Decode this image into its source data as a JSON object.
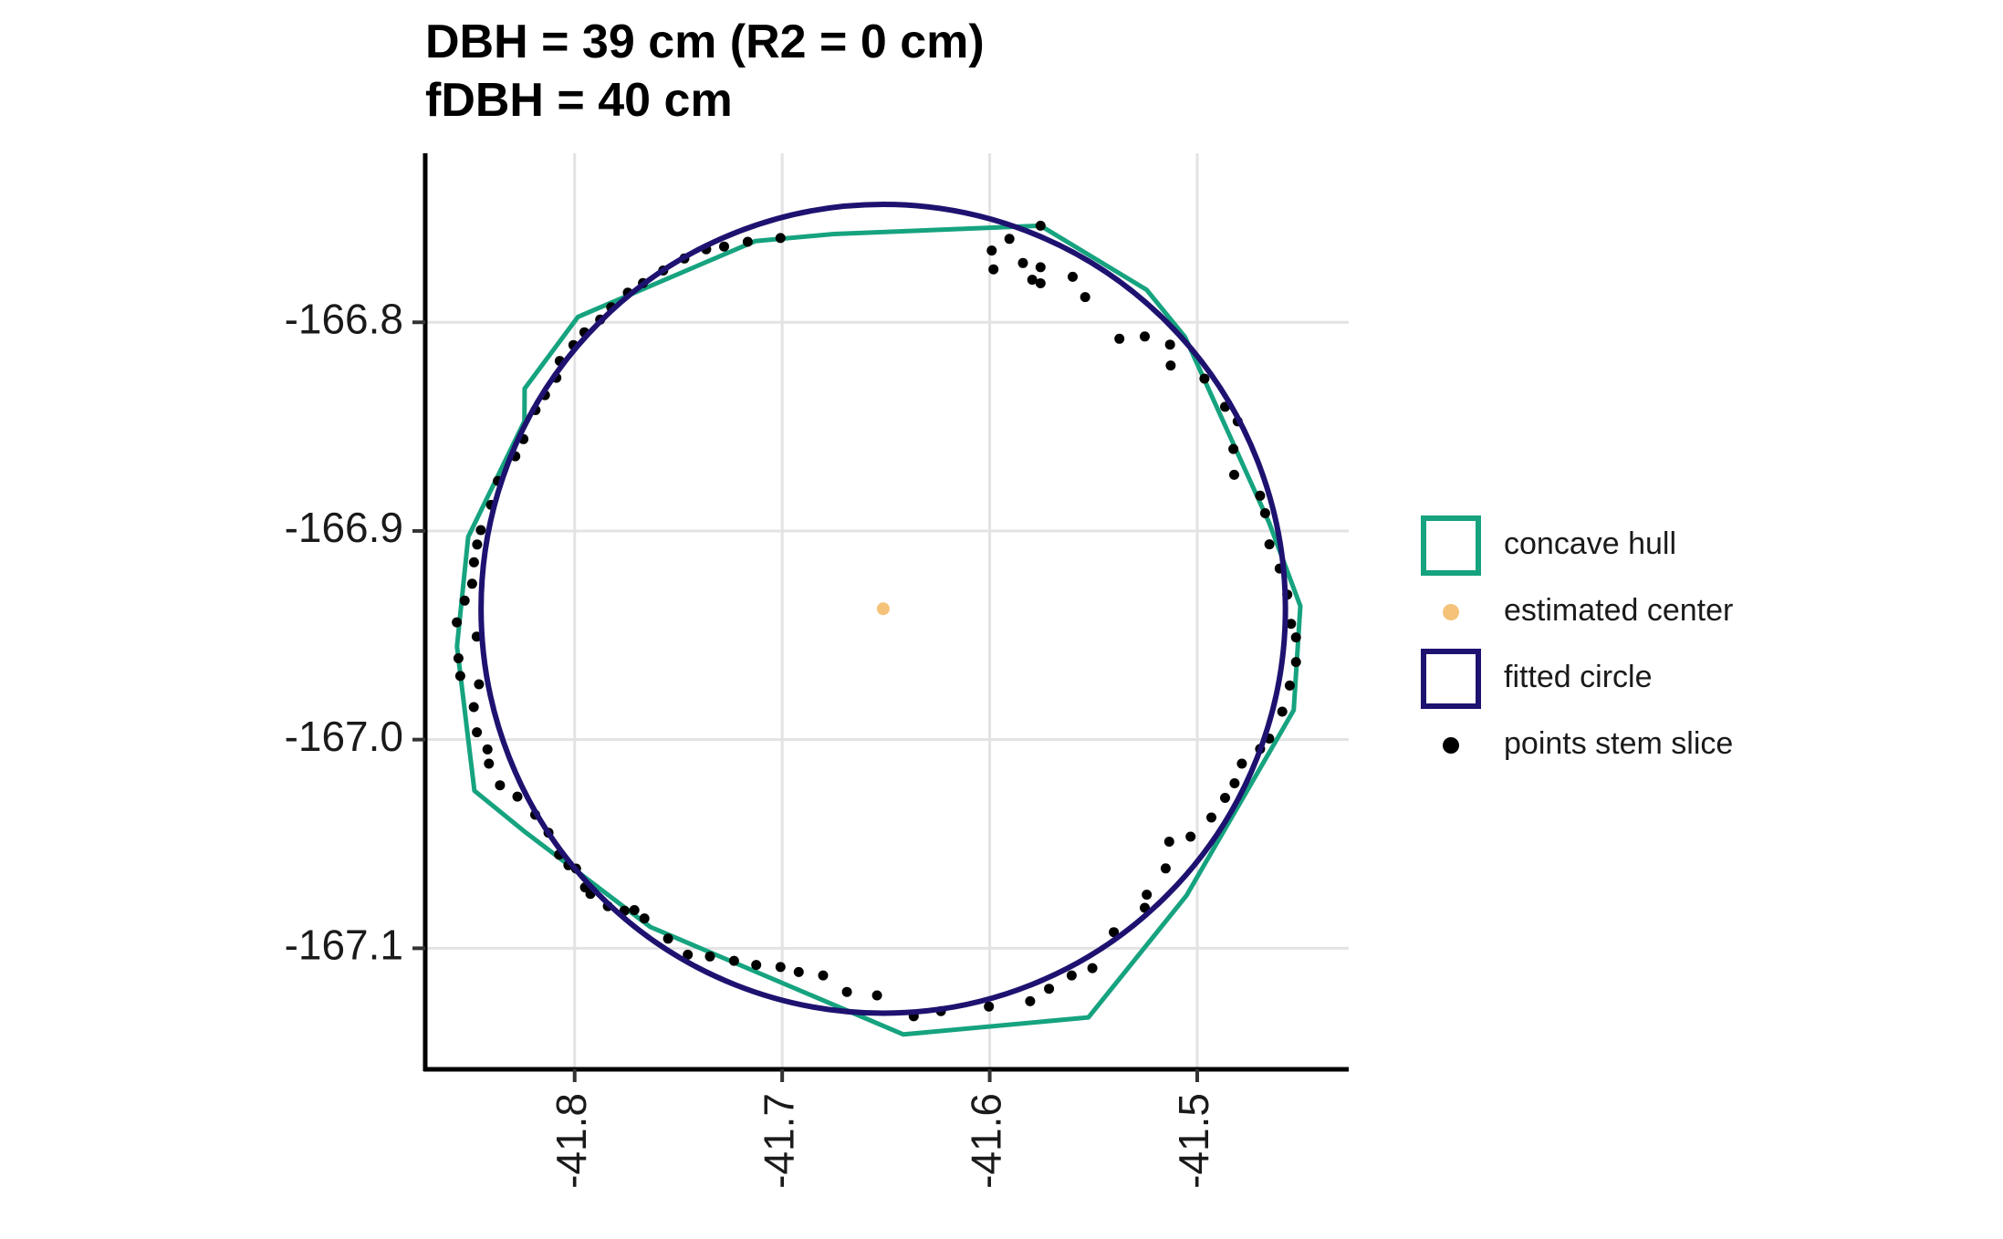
{
  "chart_data": {
    "type": "scatter",
    "title_lines": [
      "DBH = 39 cm (R2 = 0 cm)",
      "fDBH = 40 cm"
    ],
    "xlabel": "",
    "ylabel": "",
    "xlim": [
      -41.872,
      -41.427
    ],
    "ylim": [
      -167.158,
      -166.719
    ],
    "x_ticks": [
      -41.8,
      -41.7,
      -41.6,
      -41.5
    ],
    "x_tick_labels": [
      "-41.8",
      "-41.7",
      "-41.6",
      "-41.5"
    ],
    "y_ticks": [
      -166.8,
      -166.9,
      -167.0,
      -167.1
    ],
    "y_tick_labels": [
      "-166.8",
      "-166.9",
      "-167.0",
      "-167.1"
    ],
    "grid": true,
    "legend_position": "right",
    "colors": {
      "hull": "#16A37F",
      "circle": "#1E1270",
      "center": "#F5C27A",
      "points": "#000000",
      "grid": "#E3E3E3"
    },
    "legend": [
      {
        "key": "hull",
        "label": "concave hull",
        "glyph": "square-outline"
      },
      {
        "key": "center",
        "label": "estimated center",
        "glyph": "dot"
      },
      {
        "key": "circle",
        "label": "fitted circle",
        "glyph": "square-outline"
      },
      {
        "key": "points",
        "label": "points stem slice",
        "glyph": "dot"
      }
    ],
    "fitted_circle": {
      "cx": -41.6513,
      "cy": -166.9373,
      "r": 0.1938
    },
    "estimated_center": {
      "x": -41.6513,
      "y": -166.9373
    },
    "concave_hull": [
      [
        -41.6751,
        -166.7577
      ],
      [
        -41.713,
        -166.7611
      ],
      [
        -41.7984,
        -166.7974
      ],
      [
        -41.8241,
        -166.8318
      ],
      [
        -41.8242,
        -166.8474
      ],
      [
        -41.8513,
        -166.9028
      ],
      [
        -41.8567,
        -166.9553
      ],
      [
        -41.8483,
        -167.0245
      ],
      [
        -41.8236,
        -167.0445
      ],
      [
        -41.7635,
        -167.0898
      ],
      [
        -41.6416,
        -167.1413
      ],
      [
        -41.5524,
        -167.1331
      ],
      [
        -41.5051,
        -167.0746
      ],
      [
        -41.4535,
        -166.9859
      ],
      [
        -41.4503,
        -166.936
      ],
      [
        -41.4652,
        -166.8964
      ],
      [
        -41.5059,
        -166.807
      ],
      [
        -41.5244,
        -166.7844
      ],
      [
        -41.5755,
        -166.7537
      ]
    ],
    "points": [
      [
        -41.5755,
        -166.7537
      ],
      [
        -41.5905,
        -166.76
      ],
      [
        -41.599,
        -166.7656
      ],
      [
        -41.584,
        -166.7716
      ],
      [
        -41.5982,
        -166.7746
      ],
      [
        -41.5755,
        -166.7736
      ],
      [
        -41.5795,
        -166.7796
      ],
      [
        -41.5755,
        -166.7813
      ],
      [
        -41.56,
        -166.7782
      ],
      [
        -41.554,
        -166.7879
      ],
      [
        -41.5375,
        -166.8079
      ],
      [
        -41.5253,
        -166.8068
      ],
      [
        -41.5131,
        -166.8107
      ],
      [
        -41.5128,
        -166.8207
      ],
      [
        -41.4965,
        -166.827
      ],
      [
        -41.4866,
        -166.8405
      ],
      [
        -41.4805,
        -166.8475
      ],
      [
        -41.4826,
        -166.8607
      ],
      [
        -41.4822,
        -166.8731
      ],
      [
        -41.4697,
        -166.8831
      ],
      [
        -41.4673,
        -166.8915
      ],
      [
        -41.4652,
        -166.9064
      ],
      [
        -41.4603,
        -166.918
      ],
      [
        -41.4566,
        -166.9305
      ],
      [
        -41.4548,
        -166.9445
      ],
      [
        -41.4524,
        -166.951
      ],
      [
        -41.4524,
        -166.9628
      ],
      [
        -41.4554,
        -166.9741
      ],
      [
        -41.459,
        -166.9866
      ],
      [
        -41.4653,
        -166.9995
      ],
      [
        -41.4697,
        -167.0045
      ],
      [
        -41.4785,
        -167.0115
      ],
      [
        -41.482,
        -167.0209
      ],
      [
        -41.4866,
        -167.0279
      ],
      [
        -41.4932,
        -167.0373
      ],
      [
        -41.5032,
        -167.0465
      ],
      [
        -41.5135,
        -167.0489
      ],
      [
        -41.5152,
        -167.0617
      ],
      [
        -41.5243,
        -167.0743
      ],
      [
        -41.5253,
        -167.0806
      ],
      [
        -41.5402,
        -167.0923
      ],
      [
        -41.5505,
        -167.1095
      ],
      [
        -41.5605,
        -167.113
      ],
      [
        -41.5714,
        -167.1194
      ],
      [
        -41.5805,
        -167.1254
      ],
      [
        -41.6004,
        -167.1279
      ],
      [
        -41.6235,
        -167.1301
      ],
      [
        -41.6366,
        -167.1326
      ],
      [
        -41.6543,
        -167.1226
      ],
      [
        -41.6688,
        -167.1209
      ],
      [
        -41.6803,
        -167.113
      ],
      [
        -41.692,
        -167.1114
      ],
      [
        -41.7008,
        -167.109
      ],
      [
        -41.7125,
        -167.108
      ],
      [
        -41.7232,
        -167.106
      ],
      [
        -41.7348,
        -167.1039
      ],
      [
        -41.7455,
        -167.1031
      ],
      [
        -41.755,
        -167.0954
      ],
      [
        -41.7664,
        -167.0857
      ],
      [
        -41.7712,
        -167.0817
      ],
      [
        -41.776,
        -167.082
      ],
      [
        -41.784,
        -167.0798
      ],
      [
        -41.7924,
        -167.0739
      ],
      [
        -41.795,
        -167.0708
      ],
      [
        -41.7993,
        -167.0618
      ],
      [
        -41.803,
        -167.0602
      ],
      [
        -41.8075,
        -167.0551
      ],
      [
        -41.8126,
        -167.0446
      ],
      [
        -41.819,
        -167.036
      ],
      [
        -41.8276,
        -167.0273
      ],
      [
        -41.836,
        -167.0219
      ],
      [
        -41.8413,
        -167.0115
      ],
      [
        -41.842,
        -167.0047
      ],
      [
        -41.8471,
        -166.9965
      ],
      [
        -41.8486,
        -166.9844
      ],
      [
        -41.8461,
        -166.9735
      ],
      [
        -41.8551,
        -166.9695
      ],
      [
        -41.856,
        -166.961
      ],
      [
        -41.8472,
        -166.9506
      ],
      [
        -41.8568,
        -166.9438
      ],
      [
        -41.853,
        -166.9334
      ],
      [
        -41.8494,
        -166.9253
      ],
      [
        -41.8485,
        -166.915
      ],
      [
        -41.847,
        -166.9065
      ],
      [
        -41.8452,
        -166.8996
      ],
      [
        -41.8403,
        -166.8875
      ],
      [
        -41.837,
        -166.876
      ],
      [
        -41.8286,
        -166.8642
      ],
      [
        -41.8247,
        -166.856
      ],
      [
        -41.8189,
        -166.8421
      ],
      [
        -41.8143,
        -166.8349
      ],
      [
        -41.8088,
        -166.8266
      ],
      [
        -41.8072,
        -166.8185
      ],
      [
        -41.8006,
        -166.8109
      ],
      [
        -41.7953,
        -166.8048
      ],
      [
        -41.7877,
        -166.7987
      ],
      [
        -41.7824,
        -166.7928
      ],
      [
        -41.7744,
        -166.7858
      ],
      [
        -41.7671,
        -166.7812
      ],
      [
        -41.7573,
        -166.7752
      ],
      [
        -41.7471,
        -166.7694
      ],
      [
        -41.7366,
        -166.765
      ],
      [
        -41.728,
        -166.7637
      ],
      [
        -41.7166,
        -166.7614
      ],
      [
        -41.7008,
        -166.7596
      ]
    ]
  }
}
